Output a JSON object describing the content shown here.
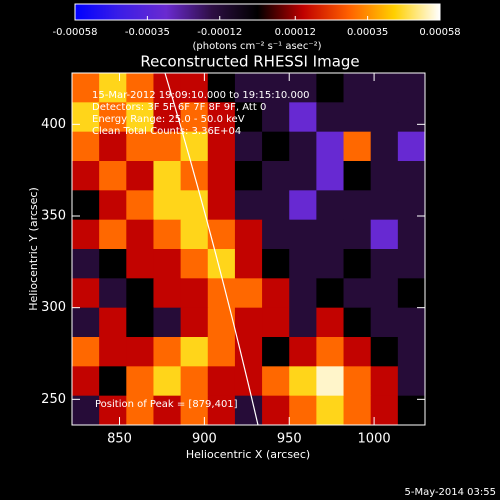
{
  "chart_data": {
    "type": "heatmap",
    "title": "Reconstructed RHESSI Image",
    "colorbar_label": "(photons cm⁻² s⁻¹ asec⁻²)",
    "colorbar_lim": [
      -0.00058,
      0.00058
    ],
    "colorbar_ticks": [
      -0.00058,
      -0.00035,
      -0.00012,
      0.00012,
      0.00035,
      0.00058
    ],
    "colormap": [
      "#0000ff",
      "#3c1ee6",
      "#6a2ad0",
      "#2e0f44",
      "#000000",
      "#c00000",
      "#ff6000",
      "#ffd000",
      "#ffffff"
    ],
    "x_label": "Heliocentric X (arcsec)",
    "y_label": "Heliocentric Y (arcsec)",
    "xlim": [
      822,
      1030
    ],
    "ylim": [
      236,
      428
    ],
    "xticks": [
      850,
      900,
      950,
      1000
    ],
    "yticks": [
      250,
      300,
      350,
      400
    ],
    "annotations": [
      "15-Mar-2012 19:09:10.000 to 19:15:10.000",
      "Detectors: 3F 5F 6F 7F 8F 9F, Att 0",
      "Energy Range: 25.0 - 50.0 keV",
      "Clean  Total Counts: 3.36E+04"
    ],
    "peak_label": "Position of Peak = [879,401]",
    "timestamp": "5-May-2014 03:55",
    "z": [
      [
        0.0003,
        0.00045,
        0.0003,
        0.00015,
        0.00015,
        0,
        -0.00012,
        -0.00012,
        -0.00012,
        0,
        -0.00012,
        -0.00012,
        -0.00012
      ],
      [
        0.00045,
        0.0003,
        0.00045,
        0.00015,
        0.0003,
        0.00015,
        0,
        -0.00012,
        -0.0003,
        -0.00012,
        -0.00012,
        -0.00012,
        -0.00012
      ],
      [
        0.0003,
        0.00015,
        0.0003,
        0.0003,
        0.00045,
        0.00015,
        -0.00012,
        0,
        -0.00012,
        -0.0003,
        0.0003,
        -0.00012,
        -0.0003
      ],
      [
        0.00015,
        0.0003,
        0.00015,
        0.00045,
        0.0003,
        0.00015,
        0,
        -0.00012,
        -0.00012,
        -0.0003,
        0,
        -0.00012,
        -0.00012
      ],
      [
        0,
        0.00015,
        0.0003,
        0.00045,
        0.00045,
        0.00015,
        -0.00012,
        -0.00012,
        -0.0003,
        -0.00012,
        -0.00012,
        -0.00012,
        -0.00012
      ],
      [
        0.00015,
        0.0003,
        0.00015,
        0.0003,
        0.00045,
        0.0003,
        0.00015,
        -0.00012,
        -0.00012,
        -0.00012,
        -0.00012,
        -0.0003,
        -0.00012
      ],
      [
        -0.00012,
        0,
        0.00015,
        0.00015,
        0.0003,
        0.00045,
        0.00015,
        0,
        -0.00012,
        -0.00012,
        0,
        -0.00012,
        -0.00012
      ],
      [
        0.00015,
        -0.00012,
        0,
        0.00015,
        0.00015,
        0.0003,
        0.0003,
        0.00015,
        -0.00012,
        0,
        -0.00012,
        -0.00012,
        0
      ],
      [
        -0.00012,
        0.00015,
        0,
        -0.00012,
        0.00015,
        0.0003,
        0.00015,
        0.00015,
        -0.00012,
        0.00015,
        0,
        -0.00012,
        -0.00012
      ],
      [
        0.0003,
        0.00015,
        0.00015,
        0.0003,
        0.00045,
        0.0003,
        0.00015,
        0,
        0.00015,
        0.0003,
        0.00015,
        0,
        -0.00012
      ],
      [
        0.00015,
        0,
        0.0003,
        0.00045,
        0.0003,
        0.00015,
        0.00015,
        0.0003,
        0.00045,
        0.00055,
        0.0003,
        0.00015,
        -0.00012
      ],
      [
        -0.00012,
        0.00015,
        0.0003,
        0.00015,
        0.0003,
        0.00015,
        -0.00012,
        0.00015,
        0.0003,
        0.00045,
        0.0003,
        0.00015,
        0
      ]
    ]
  }
}
